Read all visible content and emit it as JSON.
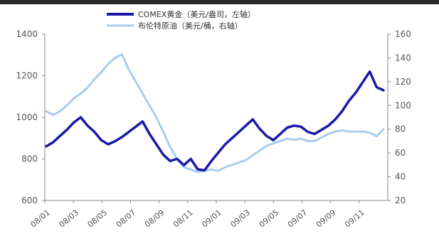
{
  "chart_data": {
    "type": "line",
    "title": "",
    "xlabel": "",
    "legend_position": "top",
    "x_tick_labels": [
      "08/01",
      "08/03",
      "08/05",
      "08/07",
      "08/09",
      "08/11",
      "09/01",
      "09/03",
      "09/05",
      "09/07",
      "09/09",
      "09/11"
    ],
    "y_left": {
      "ticks": [
        600,
        800,
        1000,
        1200,
        1400
      ],
      "ylim": [
        600,
        1400
      ]
    },
    "y_right": {
      "ticks": [
        20,
        40,
        60,
        80,
        100,
        120,
        140,
        160
      ],
      "ylim": [
        20,
        160
      ]
    },
    "series": [
      {
        "name": "COMEX黄金（美元/盎司，左轴）",
        "axis": "left",
        "color": "#1a1aa8",
        "values": [
          860,
          880,
          910,
          940,
          975,
          1000,
          960,
          930,
          890,
          870,
          885,
          905,
          930,
          955,
          980,
          920,
          870,
          820,
          790,
          800,
          770,
          800,
          750,
          745,
          790,
          830,
          870,
          900,
          930,
          960,
          990,
          945,
          910,
          890,
          920,
          950,
          960,
          955,
          930,
          920,
          940,
          960,
          990,
          1030,
          1080,
          1120,
          1170,
          1220,
          1145,
          1130
        ]
      },
      {
        "name": "布伦特原油（美元/桶，右轴）",
        "axis": "right",
        "color": "#a9cdef",
        "values": [
          95,
          92,
          95,
          100,
          106,
          110,
          115,
          122,
          128,
          135,
          140,
          143,
          130,
          120,
          110,
          100,
          90,
          78,
          65,
          55,
          48,
          46,
          44,
          45,
          46,
          45,
          48,
          50,
          52,
          54,
          58,
          62,
          66,
          68,
          70,
          72,
          71,
          72,
          70,
          70,
          73,
          76,
          78,
          79,
          78,
          78,
          78,
          77,
          74,
          80
        ]
      }
    ]
  }
}
